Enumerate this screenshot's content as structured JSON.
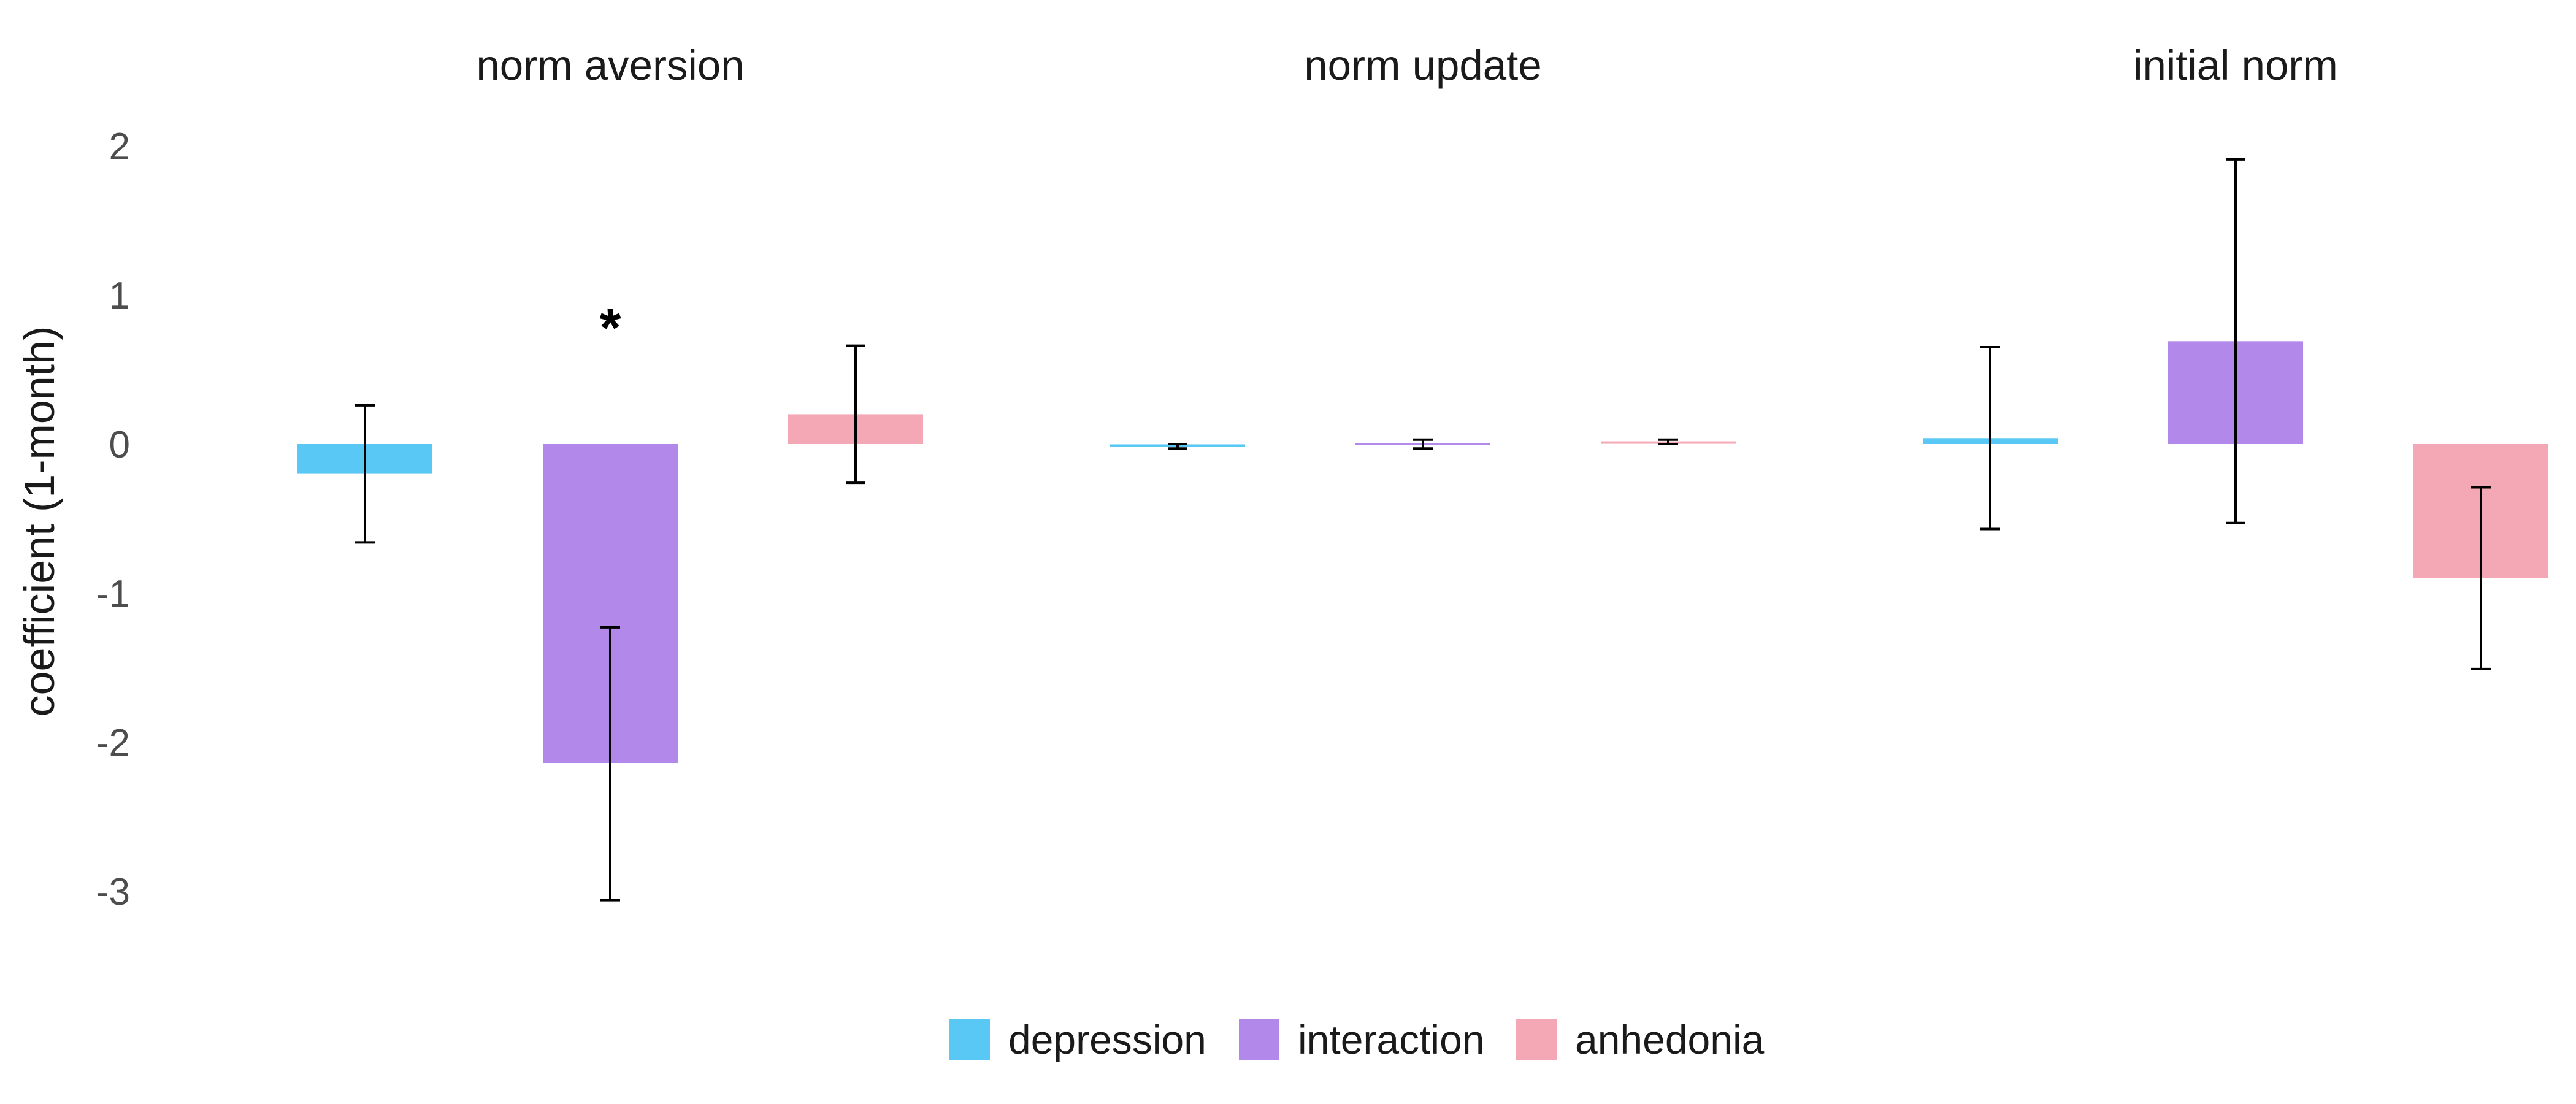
{
  "chart_data": {
    "type": "bar",
    "ylabel": "coefficient (1-month)",
    "ylim": [
      -3.5,
      2.3
    ],
    "yticks": [
      2,
      1,
      0,
      -1,
      -2,
      -3
    ],
    "ytick_labels": [
      "2",
      "1",
      "0",
      "-1",
      "-2",
      "-3"
    ],
    "legend_position": "bottom",
    "grid": false,
    "series": [
      {
        "name": "depression",
        "color": "#5ac8f5"
      },
      {
        "name": "interaction",
        "color": "#b388eb"
      },
      {
        "name": "anhedonia",
        "color": "#f4a8b6"
      }
    ],
    "facets": [
      {
        "title": "norm aversion",
        "bars": [
          {
            "series": "depression",
            "value": -0.2,
            "ci": [
              -0.66,
              0.26
            ]
          },
          {
            "series": "interaction",
            "value": -2.14,
            "ci": [
              -3.06,
              -1.23
            ],
            "annotation": "*"
          },
          {
            "series": "anhedonia",
            "value": 0.2,
            "ci": [
              -0.26,
              0.66
            ]
          }
        ]
      },
      {
        "title": "norm update",
        "bars": [
          {
            "series": "depression",
            "value": -0.01,
            "ci": [
              -0.03,
              0.0
            ]
          },
          {
            "series": "interaction",
            "value": 0.0,
            "ci": [
              -0.03,
              0.03
            ]
          },
          {
            "series": "anhedonia",
            "value": 0.01,
            "ci": [
              0.0,
              0.03
            ]
          }
        ]
      },
      {
        "title": "initial norm",
        "bars": [
          {
            "series": "depression",
            "value": 0.04,
            "ci": [
              -0.57,
              0.65
            ]
          },
          {
            "series": "interaction",
            "value": 0.69,
            "ci": [
              -0.53,
              1.91
            ]
          },
          {
            "series": "anhedonia",
            "value": -0.9,
            "ci": [
              -1.51,
              -0.29
            ]
          }
        ]
      }
    ]
  }
}
